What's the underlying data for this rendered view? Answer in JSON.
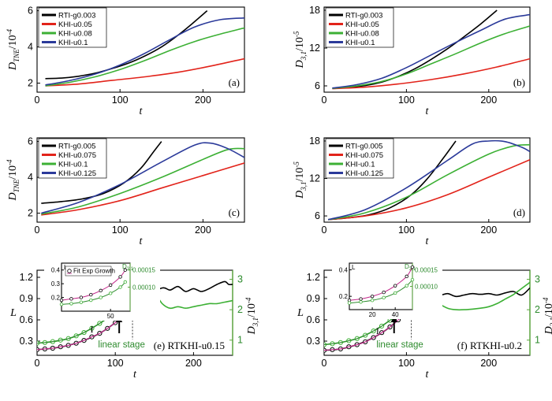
{
  "chart_data": [
    {
      "id": "a",
      "type": "line",
      "panel_tag": "(a)",
      "xlabel": "t",
      "ylabel": "D_TNE/10^-4",
      "xlim": [
        0,
        250
      ],
      "ylim": [
        1.5,
        6.2
      ],
      "xticks": [
        0,
        100,
        200
      ],
      "yticks": [
        2,
        4,
        6
      ],
      "legend_position": "top-left",
      "series": [
        {
          "name": "RTI-g0.003",
          "color": "#000000",
          "x": [
            10,
            30,
            50,
            70,
            90,
            110,
            130,
            150,
            170,
            190,
            205
          ],
          "y": [
            2.25,
            2.28,
            2.38,
            2.55,
            2.8,
            3.1,
            3.5,
            4.0,
            4.65,
            5.4,
            6.0
          ]
        },
        {
          "name": "KHI-u0.05",
          "color": "#e2231a",
          "x": [
            10,
            50,
            90,
            130,
            170,
            210,
            250
          ],
          "y": [
            1.85,
            1.95,
            2.15,
            2.35,
            2.6,
            2.95,
            3.35
          ]
        },
        {
          "name": "KHI-u0.08",
          "color": "#3cb034",
          "x": [
            10,
            40,
            70,
            100,
            130,
            160,
            190,
            220,
            250
          ],
          "y": [
            1.85,
            2.05,
            2.35,
            2.75,
            3.25,
            3.8,
            4.3,
            4.7,
            5.05
          ]
        },
        {
          "name": "KHI-u0.1",
          "color": "#2b3a9a",
          "x": [
            10,
            40,
            70,
            100,
            130,
            160,
            190,
            220,
            250
          ],
          "y": [
            1.9,
            2.15,
            2.5,
            3.0,
            3.65,
            4.4,
            5.1,
            5.5,
            5.6
          ]
        }
      ]
    },
    {
      "id": "b",
      "type": "line",
      "panel_tag": "(b)",
      "xlabel": "t",
      "ylabel": "D_3,1/10^-5",
      "xlim": [
        0,
        250
      ],
      "ylim": [
        5,
        18.5
      ],
      "xticks": [
        0,
        100,
        200
      ],
      "yticks": [
        6,
        12,
        18
      ],
      "legend_position": "top-left",
      "series": [
        {
          "name": "RTI-g0.003",
          "color": "#000000",
          "x": [
            10,
            30,
            50,
            70,
            90,
            110,
            130,
            150,
            170,
            190,
            210
          ],
          "y": [
            5.6,
            5.8,
            6.05,
            6.6,
            7.5,
            8.7,
            10.2,
            11.9,
            13.8,
            15.8,
            18.0
          ]
        },
        {
          "name": "KHI-u0.05",
          "color": "#e2231a",
          "x": [
            10,
            50,
            90,
            130,
            170,
            210,
            250
          ],
          "y": [
            5.55,
            5.8,
            6.3,
            7.0,
            7.9,
            9.0,
            10.3
          ]
        },
        {
          "name": "KHI-u0.08",
          "color": "#3cb034",
          "x": [
            10,
            40,
            70,
            100,
            130,
            160,
            190,
            220,
            250
          ],
          "y": [
            5.6,
            6.0,
            6.7,
            7.9,
            9.5,
            11.1,
            12.8,
            14.3,
            15.5
          ]
        },
        {
          "name": "KHI-u0.1",
          "color": "#2b3a9a",
          "x": [
            10,
            40,
            70,
            100,
            130,
            160,
            190,
            220,
            250
          ],
          "y": [
            5.65,
            6.2,
            7.2,
            8.9,
            10.9,
            12.9,
            14.8,
            16.6,
            17.3
          ]
        }
      ]
    },
    {
      "id": "c",
      "type": "line",
      "panel_tag": "(c)",
      "xlabel": "t",
      "ylabel": "D_TNE/10^-4",
      "xlim": [
        0,
        250
      ],
      "ylim": [
        1.5,
        6.2
      ],
      "xticks": [
        0,
        100,
        200
      ],
      "yticks": [
        2,
        4,
        6
      ],
      "legend_position": "top-left",
      "series": [
        {
          "name": "RTI-g0.005",
          "color": "#000000",
          "x": [
            5,
            30,
            55,
            80,
            105,
            125,
            140,
            150
          ],
          "y": [
            2.55,
            2.65,
            2.8,
            3.1,
            3.7,
            4.5,
            5.4,
            6.0
          ]
        },
        {
          "name": "KHI-u0.075",
          "color": "#e2231a",
          "x": [
            5,
            50,
            100,
            150,
            200,
            250
          ],
          "y": [
            1.9,
            2.2,
            2.7,
            3.4,
            4.1,
            4.8
          ]
        },
        {
          "name": "KHI-u0.1",
          "color": "#3cb034",
          "x": [
            5,
            50,
            100,
            150,
            200,
            230,
            250
          ],
          "y": [
            1.95,
            2.35,
            3.1,
            4.0,
            5.0,
            5.55,
            5.6
          ]
        },
        {
          "name": "KHI-u0.125",
          "color": "#2b3a9a",
          "x": [
            5,
            50,
            100,
            150,
            190,
            210,
            230,
            250
          ],
          "y": [
            2.0,
            2.6,
            3.6,
            4.85,
            5.8,
            5.9,
            5.6,
            5.1
          ]
        }
      ]
    },
    {
      "id": "d",
      "type": "line",
      "panel_tag": "(d)",
      "xlabel": "t",
      "ylabel": "D_3,1/10^-5",
      "xlim": [
        0,
        250
      ],
      "ylim": [
        5,
        18.5
      ],
      "xticks": [
        0,
        100,
        200
      ],
      "yticks": [
        6,
        12,
        18
      ],
      "legend_position": "top-left",
      "series": [
        {
          "name": "RTI-g0.005",
          "color": "#000000",
          "x": [
            5,
            30,
            55,
            80,
            105,
            125,
            145,
            160
          ],
          "y": [
            5.4,
            5.7,
            6.2,
            7.3,
            9.3,
            11.9,
            15.3,
            18.0
          ]
        },
        {
          "name": "KHI-u0.075",
          "color": "#e2231a",
          "x": [
            5,
            50,
            100,
            150,
            200,
            250
          ],
          "y": [
            5.4,
            6.0,
            7.3,
            9.4,
            12.2,
            15.0
          ]
        },
        {
          "name": "KHI-u0.1",
          "color": "#3cb034",
          "x": [
            5,
            50,
            100,
            150,
            200,
            230,
            250
          ],
          "y": [
            5.4,
            6.5,
            9.0,
            12.6,
            15.9,
            17.2,
            17.4
          ]
        },
        {
          "name": "KHI-u0.125",
          "color": "#2b3a9a",
          "x": [
            5,
            50,
            100,
            150,
            180,
            200,
            220,
            240,
            250
          ],
          "y": [
            5.4,
            7.0,
            10.5,
            14.9,
            17.5,
            18.0,
            17.9,
            17.0,
            16.3
          ]
        }
      ]
    },
    {
      "id": "e",
      "type": "line",
      "panel_tag": "(e) RTKHI-u0.15",
      "xlabel": "t",
      "ylabel": "L",
      "y2label": "D_3,1/10^-4",
      "xlim": [
        0,
        250
      ],
      "ylim": [
        0.1,
        1.3
      ],
      "y2lim": [
        0.5,
        3.3
      ],
      "xticks": [
        0,
        100,
        200
      ],
      "yticks": [
        0.3,
        0.6,
        0.9,
        1.2
      ],
      "y2ticks": [
        1,
        2,
        3
      ],
      "annotations": [
        "I",
        "II",
        "linear stage"
      ],
      "series": [
        {
          "name": "L",
          "axis": "left",
          "color": "#000000",
          "x": [
            0,
            20,
            40,
            60,
            80,
            100,
            120,
            140,
            160,
            170,
            180,
            190,
            200,
            210,
            220,
            230,
            240,
            245,
            250
          ],
          "y": [
            0.18,
            0.2,
            0.24,
            0.31,
            0.41,
            0.56,
            0.74,
            0.93,
            1.05,
            1.02,
            1.07,
            1.0,
            1.04,
            1.0,
            1.04,
            1.1,
            1.14,
            1.1,
            1.1
          ]
        },
        {
          "name": "D_3,1",
          "axis": "right",
          "color": "#3cb034",
          "x": [
            0,
            20,
            40,
            60,
            80,
            100,
            120,
            140,
            150,
            160,
            170,
            180,
            190,
            200,
            210,
            220,
            230,
            240,
            250
          ],
          "y": [
            0.9,
            0.95,
            1.05,
            1.25,
            1.55,
            1.9,
            2.25,
            2.45,
            2.55,
            2.2,
            2.05,
            2.1,
            2.05,
            2.1,
            2.15,
            2.2,
            2.2,
            2.25,
            2.3
          ]
        },
        {
          "name": "L markers",
          "axis": "left",
          "marker": "open-circle",
          "color": "#000000",
          "x": [
            0,
            10,
            20,
            30,
            40,
            50,
            60,
            70,
            80,
            90,
            100,
            110,
            120
          ],
          "y": [
            0.18,
            0.19,
            0.2,
            0.22,
            0.24,
            0.27,
            0.31,
            0.36,
            0.41,
            0.48,
            0.56,
            0.65,
            0.74
          ]
        },
        {
          "name": "D_3,1 markers",
          "axis": "right",
          "marker": "open-circle",
          "color": "#3cb034",
          "x": [
            0,
            10,
            20,
            30,
            40,
            50,
            60,
            70,
            80,
            90,
            100,
            110,
            120
          ],
          "y": [
            0.9,
            0.92,
            0.95,
            1.0,
            1.05,
            1.14,
            1.25,
            1.39,
            1.55,
            1.72,
            1.9,
            2.07,
            2.25
          ]
        }
      ],
      "inset": {
        "xlabel": "",
        "ylabel": "L",
        "y2label": "D_3,1",
        "xlim": [
          0,
          70
        ],
        "ylim": [
          0.1,
          0.45
        ],
        "y2lim": [
          3e-05,
          0.00017
        ],
        "xticks": [
          50
        ],
        "yticks": [
          0.2,
          0.3,
          0.4
        ],
        "y2ticks": [
          "0.00010",
          "0.00015"
        ],
        "legend": "Fit Exp Growth",
        "series": [
          {
            "name": "L",
            "axis": "left",
            "color": "#000000",
            "x": [
              0,
              10,
              20,
              30,
              40,
              50,
              60,
              65
            ],
            "y": [
              0.18,
              0.19,
              0.2,
              0.22,
              0.25,
              0.29,
              0.35,
              0.4
            ]
          },
          {
            "name": "D_3,1",
            "axis": "right",
            "color": "#3cb034",
            "x": [
              0,
              10,
              20,
              30,
              40,
              50,
              60,
              65
            ],
            "y": [
              5e-05,
              5.2e-05,
              5.6e-05,
              6.2e-05,
              7e-05,
              8.2e-05,
              0.0001,
              0.000115
            ]
          }
        ]
      }
    },
    {
      "id": "f",
      "type": "line",
      "panel_tag": "(f) RTKHI-u0.2",
      "xlabel": "t",
      "ylabel": "L",
      "y2label": "D_3,1/10^-4",
      "xlim": [
        0,
        250
      ],
      "ylim": [
        0.1,
        1.3
      ],
      "y2lim": [
        0.5,
        3.3
      ],
      "xticks": [
        0,
        100,
        200
      ],
      "yticks": [
        0.3,
        0.6,
        0.9,
        1.2
      ],
      "y2ticks": [
        1,
        2,
        3
      ],
      "annotations": [
        "I",
        "II",
        "linear stage"
      ],
      "series": [
        {
          "name": "L",
          "axis": "left",
          "color": "#000000",
          "x": [
            0,
            20,
            40,
            60,
            80,
            100,
            110,
            120,
            130,
            140,
            150,
            160,
            170,
            180,
            190,
            200,
            210,
            220,
            230,
            240,
            250
          ],
          "y": [
            0.17,
            0.19,
            0.25,
            0.35,
            0.5,
            0.72,
            0.87,
            0.95,
            1.02,
            0.95,
            0.97,
            0.93,
            0.95,
            0.97,
            0.96,
            0.97,
            0.95,
            0.98,
            1.0,
            0.95,
            1.05
          ]
        },
        {
          "name": "D_3,1",
          "axis": "right",
          "color": "#3cb034",
          "x": [
            0,
            20,
            40,
            60,
            80,
            100,
            120,
            130,
            140,
            150,
            160,
            170,
            180,
            190,
            200,
            210,
            220,
            230,
            240,
            250
          ],
          "y": [
            0.85,
            0.92,
            1.05,
            1.3,
            1.65,
            2.05,
            2.35,
            2.45,
            2.2,
            2.05,
            2.0,
            2.0,
            2.02,
            2.05,
            2.1,
            2.2,
            2.35,
            2.5,
            2.7,
            2.9
          ]
        },
        {
          "name": "L markers",
          "axis": "left",
          "marker": "open-circle",
          "color": "#000000",
          "x": [
            0,
            10,
            20,
            30,
            40,
            50,
            60,
            70,
            80,
            90,
            100
          ],
          "y": [
            0.17,
            0.18,
            0.19,
            0.22,
            0.25,
            0.29,
            0.35,
            0.42,
            0.5,
            0.6,
            0.72
          ]
        },
        {
          "name": "D_3,1 markers",
          "axis": "right",
          "marker": "open-circle",
          "color": "#3cb034",
          "x": [
            0,
            10,
            20,
            30,
            40,
            50,
            60,
            70,
            80,
            90,
            100
          ],
          "y": [
            0.85,
            0.88,
            0.92,
            0.98,
            1.05,
            1.16,
            1.3,
            1.46,
            1.65,
            1.85,
            2.05
          ]
        }
      ],
      "inset": {
        "xlabel": "",
        "ylabel": "L",
        "y2label": "D_3,1",
        "xlim": [
          0,
          55
        ],
        "ylim": [
          0.1,
          0.45
        ],
        "y2lim": [
          3e-05,
          0.00017
        ],
        "xticks": [
          20,
          40
        ],
        "yticks": [
          0.2,
          0.4
        ],
        "y2ticks": [
          "0.00010",
          "0.00015"
        ],
        "legend": "",
        "series": [
          {
            "name": "L",
            "axis": "left",
            "color": "#000000",
            "x": [
              0,
              10,
              20,
              30,
              40,
              50,
              55
            ],
            "y": [
              0.17,
              0.18,
              0.2,
              0.23,
              0.28,
              0.35,
              0.42
            ]
          },
          {
            "name": "D_3,1",
            "axis": "right",
            "color": "#3cb034",
            "x": [
              0,
              10,
              20,
              30,
              40,
              50,
              55
            ],
            "y": [
              5e-05,
              5.3e-05,
              5.8e-05,
              6.6e-05,
              8e-05,
              0.000102,
              0.00012
            ]
          }
        ]
      }
    }
  ]
}
